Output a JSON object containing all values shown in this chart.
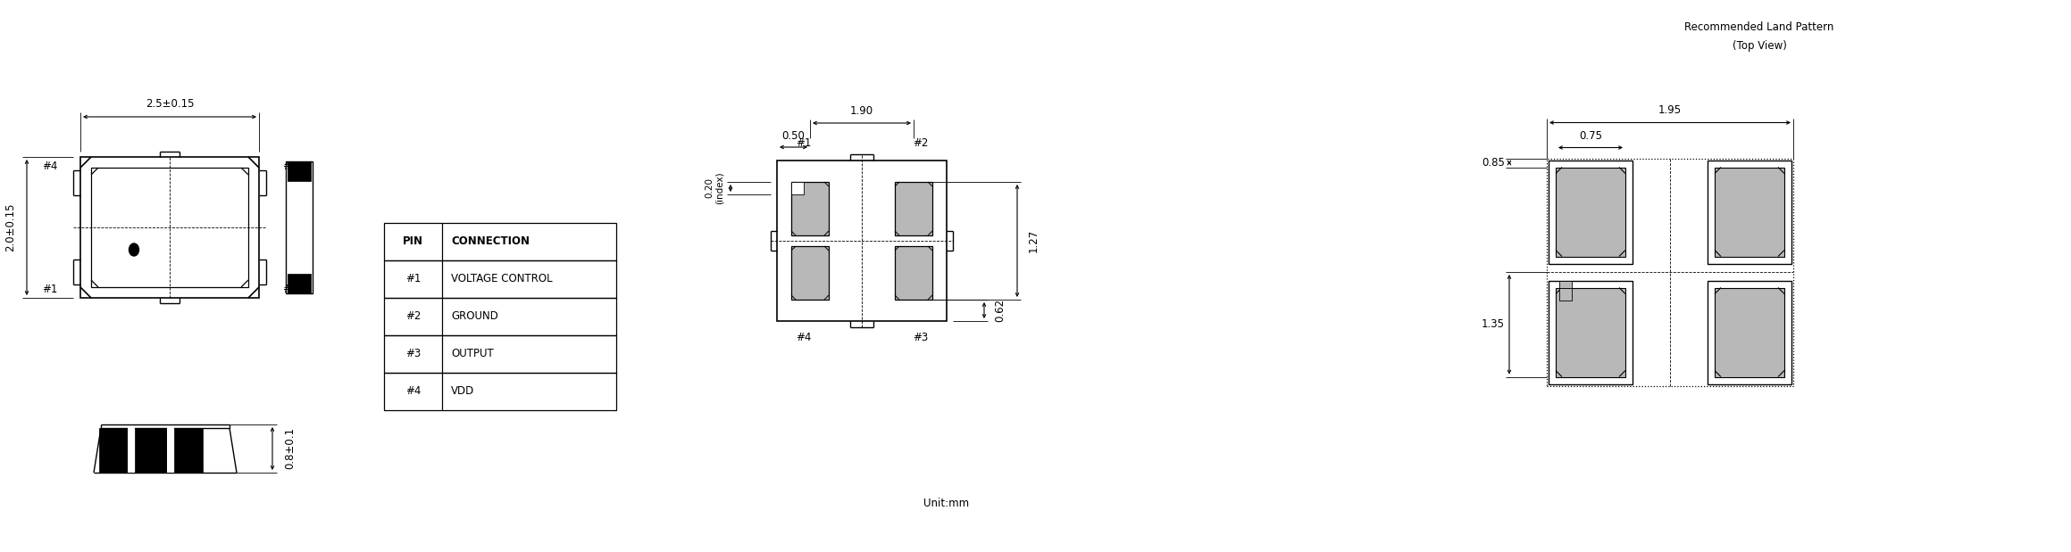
{
  "bg_color": "#ffffff",
  "line_color": "#000000",
  "gray_fill": "#b8b8b8",
  "title_line1": "Recommended Land Pattern",
  "title_line2": "(Top View)",
  "unit_label": "Unit:mm",
  "pin_table": {
    "headers": [
      "PIN",
      "CONNECTION"
    ],
    "rows": [
      [
        "#1",
        "VOLTAGE CONTROL"
      ],
      [
        "#2",
        "GROUND"
      ],
      [
        "#3",
        "OUTPUT"
      ],
      [
        "#4",
        "VDD"
      ]
    ]
  },
  "dim_25015": "2.5±0.15",
  "dim_20015": "2.0±0.15",
  "dim_0801": "0.8±0.1",
  "dim_190": "1.90",
  "dim_050": "0.50",
  "dim_020": "0.20\n(index)",
  "dim_062": "0.62",
  "dim_127": "1.27",
  "dim_195": "1.95",
  "dim_085": "0.85",
  "dim_075": "0.75",
  "dim_135": "1.35"
}
